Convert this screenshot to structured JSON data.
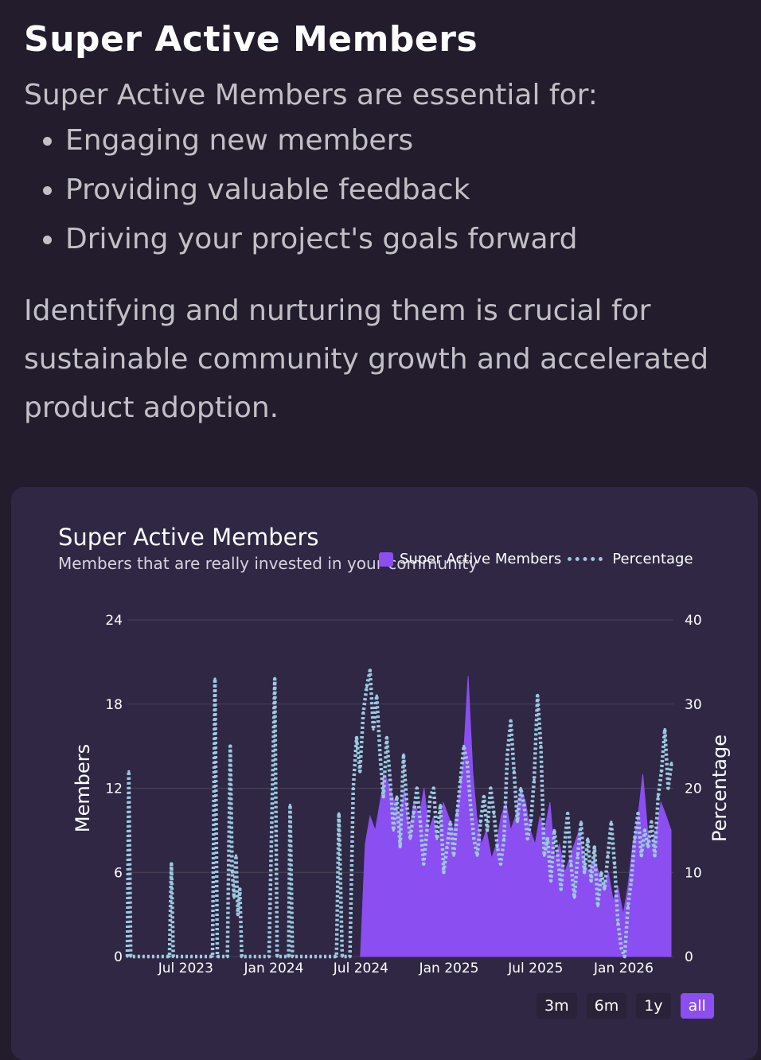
{
  "intro": {
    "heading": "Super Active Members",
    "lead": "Super Active Members are essential for:",
    "bullets": [
      "Engaging new members",
      "Providing valuable feedback",
      "Driving your project's goals forward"
    ],
    "paragraph": "Identifying and nurturing them is crucial for sustainable community growth and accelerated product adoption."
  },
  "card": {
    "title": "Super Active Members",
    "subtitle": "Members that are really invested in your community",
    "legend": [
      "Super Active Members",
      "Percentage"
    ],
    "ranges": [
      "3m",
      "6m",
      "1y",
      "all"
    ],
    "active_range": "all"
  },
  "colors": {
    "bars": "#8b4ef0",
    "line": "#9cc9e0",
    "grid": "#4a4358"
  },
  "chart_data": {
    "type": "bar",
    "title": "Super Active Members",
    "subtitle": "Members that are really invested in your community",
    "ylabel": "Members",
    "y2label": "Percentage",
    "ylim": [
      0,
      24
    ],
    "y2lim": [
      0,
      40
    ],
    "yticks": [
      0,
      6,
      12,
      18,
      24
    ],
    "y2ticks": [
      0,
      10,
      20,
      30,
      40
    ],
    "xlim": [
      "2023-03-01",
      "2026-04-15"
    ],
    "xticks": [
      "Jul 2023",
      "Jan 2024",
      "Jul 2024",
      "Jan 2025",
      "Jul 2025",
      "Jan 2026"
    ],
    "xtick_dates": [
      "2023-07-01",
      "2024-01-01",
      "2024-07-01",
      "2025-01-01",
      "2025-07-01",
      "2026-01-01"
    ],
    "series": [
      {
        "name": "Super Active Members",
        "type": "bar",
        "points": [
          [
            "2024-06-30",
            0
          ],
          [
            "2024-07-10",
            8
          ],
          [
            "2024-07-20",
            10
          ],
          [
            "2024-07-31",
            9
          ],
          [
            "2024-08-10",
            11
          ],
          [
            "2024-08-20",
            13
          ],
          [
            "2024-08-31",
            12
          ],
          [
            "2024-09-10",
            11
          ],
          [
            "2024-09-20",
            10
          ],
          [
            "2024-09-30",
            12
          ],
          [
            "2024-10-10",
            9
          ],
          [
            "2024-10-20",
            11
          ],
          [
            "2024-10-31",
            10
          ],
          [
            "2024-11-10",
            12
          ],
          [
            "2024-11-20",
            9
          ],
          [
            "2024-11-30",
            10
          ],
          [
            "2024-12-10",
            8
          ],
          [
            "2024-12-20",
            11
          ],
          [
            "2024-12-31",
            10
          ],
          [
            "2025-01-10",
            9
          ],
          [
            "2025-01-20",
            11
          ],
          [
            "2025-01-31",
            14
          ],
          [
            "2025-02-10",
            20
          ],
          [
            "2025-02-20",
            13
          ],
          [
            "2025-02-28",
            10
          ],
          [
            "2025-03-10",
            8
          ],
          [
            "2025-03-20",
            9
          ],
          [
            "2025-03-31",
            7
          ],
          [
            "2025-04-10",
            8
          ],
          [
            "2025-04-20",
            10
          ],
          [
            "2025-04-30",
            11
          ],
          [
            "2025-05-10",
            9
          ],
          [
            "2025-05-20",
            10
          ],
          [
            "2025-05-31",
            12
          ],
          [
            "2025-06-10",
            11
          ],
          [
            "2025-06-20",
            9
          ],
          [
            "2025-06-30",
            8
          ],
          [
            "2025-07-10",
            10
          ],
          [
            "2025-07-20",
            9
          ],
          [
            "2025-07-31",
            11
          ],
          [
            "2025-08-10",
            7
          ],
          [
            "2025-08-20",
            8
          ],
          [
            "2025-08-31",
            6
          ],
          [
            "2025-09-10",
            7
          ],
          [
            "2025-09-20",
            8
          ],
          [
            "2025-09-30",
            9
          ],
          [
            "2025-10-10",
            7
          ],
          [
            "2025-10-20",
            6
          ],
          [
            "2025-10-31",
            7
          ],
          [
            "2025-11-10",
            6
          ],
          [
            "2025-11-20",
            5
          ],
          [
            "2025-11-30",
            6
          ],
          [
            "2025-12-10",
            4
          ],
          [
            "2025-12-20",
            5
          ],
          [
            "2025-12-31",
            3
          ],
          [
            "2026-01-10",
            5
          ],
          [
            "2026-01-20",
            8
          ],
          [
            "2026-01-31",
            10
          ],
          [
            "2026-02-10",
            13
          ],
          [
            "2026-02-20",
            9
          ],
          [
            "2026-02-28",
            8
          ],
          [
            "2026-03-10",
            9
          ],
          [
            "2026-03-20",
            11
          ],
          [
            "2026-03-31",
            10
          ],
          [
            "2026-04-10",
            9
          ]
        ]
      },
      {
        "name": "Percentage",
        "type": "line",
        "points": [
          [
            "2023-03-01",
            0
          ],
          [
            "2023-03-04",
            22
          ],
          [
            "2023-03-08",
            0
          ],
          [
            "2023-05-28",
            0
          ],
          [
            "2023-06-01",
            11
          ],
          [
            "2023-06-05",
            0
          ],
          [
            "2023-08-26",
            0
          ],
          [
            "2023-08-31",
            33
          ],
          [
            "2023-09-05",
            0
          ],
          [
            "2023-09-26",
            0
          ],
          [
            "2023-10-02",
            25
          ],
          [
            "2023-10-06",
            10
          ],
          [
            "2023-10-10",
            7
          ],
          [
            "2023-10-14",
            12
          ],
          [
            "2023-10-18",
            5
          ],
          [
            "2023-10-22",
            8
          ],
          [
            "2023-10-26",
            0
          ],
          [
            "2023-12-22",
            0
          ],
          [
            "2024-01-03",
            33
          ],
          [
            "2024-01-08",
            0
          ],
          [
            "2024-02-01",
            0
          ],
          [
            "2024-02-04",
            18
          ],
          [
            "2024-02-09",
            0
          ],
          [
            "2024-05-11",
            0
          ],
          [
            "2024-05-16",
            17
          ],
          [
            "2024-05-23",
            0
          ],
          [
            "2024-06-08",
            0
          ],
          [
            "2024-06-15",
            20
          ],
          [
            "2024-06-22",
            26
          ],
          [
            "2024-06-29",
            22
          ],
          [
            "2024-07-06",
            29
          ],
          [
            "2024-07-13",
            32
          ],
          [
            "2024-07-20",
            34
          ],
          [
            "2024-07-27",
            27
          ],
          [
            "2024-08-03",
            31
          ],
          [
            "2024-08-10",
            24
          ],
          [
            "2024-08-17",
            19
          ],
          [
            "2024-08-24",
            26
          ],
          [
            "2024-08-31",
            21
          ],
          [
            "2024-09-07",
            15
          ],
          [
            "2024-09-14",
            19
          ],
          [
            "2024-09-21",
            13
          ],
          [
            "2024-09-28",
            24
          ],
          [
            "2024-10-05",
            18
          ],
          [
            "2024-10-12",
            14
          ],
          [
            "2024-10-19",
            17
          ],
          [
            "2024-10-26",
            20
          ],
          [
            "2024-11-02",
            16
          ],
          [
            "2024-11-09",
            11
          ],
          [
            "2024-11-16",
            15
          ],
          [
            "2024-11-23",
            19
          ],
          [
            "2024-11-30",
            20
          ],
          [
            "2024-12-07",
            14
          ],
          [
            "2024-12-14",
            18
          ],
          [
            "2024-12-21",
            10
          ],
          [
            "2024-12-28",
            13
          ],
          [
            "2025-01-04",
            16
          ],
          [
            "2025-01-11",
            12
          ],
          [
            "2025-01-18",
            17
          ],
          [
            "2025-01-25",
            21
          ],
          [
            "2025-02-01",
            25
          ],
          [
            "2025-02-08",
            23
          ],
          [
            "2025-02-15",
            18
          ],
          [
            "2025-02-22",
            14
          ],
          [
            "2025-03-01",
            12
          ],
          [
            "2025-03-08",
            16
          ],
          [
            "2025-03-15",
            19
          ],
          [
            "2025-03-22",
            15
          ],
          [
            "2025-03-29",
            20
          ],
          [
            "2025-04-05",
            17
          ],
          [
            "2025-04-12",
            13
          ],
          [
            "2025-04-19",
            11
          ],
          [
            "2025-04-26",
            14
          ],
          [
            "2025-05-03",
            24
          ],
          [
            "2025-05-10",
            28
          ],
          [
            "2025-05-17",
            22
          ],
          [
            "2025-05-24",
            16
          ],
          [
            "2025-05-31",
            20
          ],
          [
            "2025-06-07",
            18
          ],
          [
            "2025-06-14",
            14
          ],
          [
            "2025-06-21",
            16
          ],
          [
            "2025-06-28",
            21
          ],
          [
            "2025-07-05",
            31
          ],
          [
            "2025-07-12",
            25
          ],
          [
            "2025-07-19",
            12
          ],
          [
            "2025-07-26",
            14
          ],
          [
            "2025-08-02",
            9
          ],
          [
            "2025-08-09",
            15
          ],
          [
            "2025-08-16",
            12
          ],
          [
            "2025-08-23",
            8
          ],
          [
            "2025-08-30",
            13
          ],
          [
            "2025-09-06",
            17
          ],
          [
            "2025-09-13",
            11
          ],
          [
            "2025-09-20",
            7
          ],
          [
            "2025-09-27",
            12
          ],
          [
            "2025-10-04",
            16
          ],
          [
            "2025-10-11",
            10
          ],
          [
            "2025-10-18",
            14
          ],
          [
            "2025-10-25",
            9
          ],
          [
            "2025-11-01",
            13
          ],
          [
            "2025-11-08",
            6
          ],
          [
            "2025-11-15",
            10
          ],
          [
            "2025-11-22",
            8
          ],
          [
            "2025-11-29",
            12
          ],
          [
            "2025-12-06",
            16
          ],
          [
            "2025-12-13",
            11
          ],
          [
            "2025-12-20",
            4
          ],
          [
            "2025-12-27",
            1
          ],
          [
            "2026-01-03",
            0
          ],
          [
            "2026-01-10",
            6
          ],
          [
            "2026-01-17",
            9
          ],
          [
            "2026-01-24",
            14
          ],
          [
            "2026-01-31",
            17
          ],
          [
            "2026-02-07",
            12
          ],
          [
            "2026-02-14",
            15
          ],
          [
            "2026-02-21",
            13
          ],
          [
            "2026-02-28",
            16
          ],
          [
            "2026-03-07",
            12
          ],
          [
            "2026-03-14",
            19
          ],
          [
            "2026-03-21",
            22
          ],
          [
            "2026-03-28",
            27
          ],
          [
            "2026-04-04",
            20
          ],
          [
            "2026-04-11",
            23
          ]
        ]
      }
    ]
  }
}
